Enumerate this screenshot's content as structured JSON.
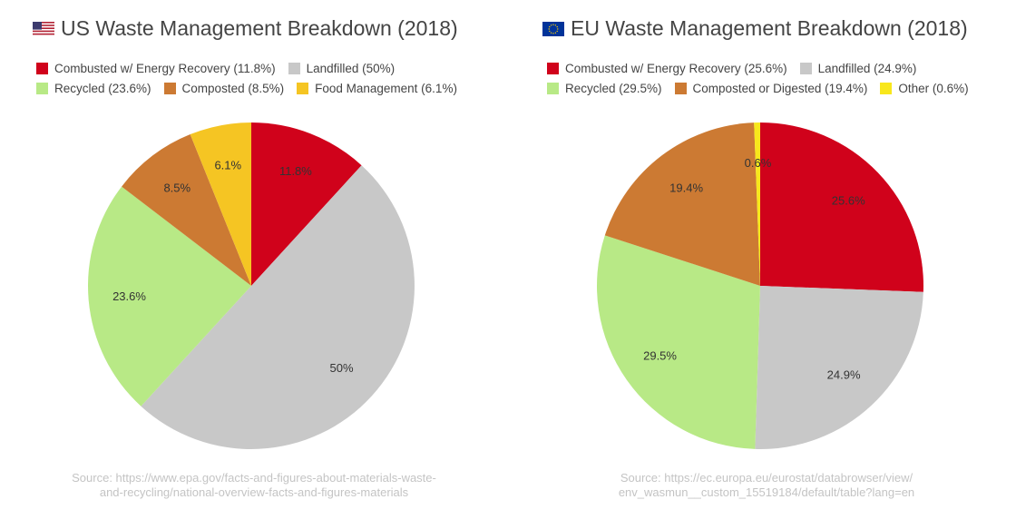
{
  "chart_data": [
    {
      "type": "pie",
      "title": "US Waste Management Breakdown (2018)",
      "flag_icon": "us-flag-icon",
      "legend": [
        [
          "Combusted w/ Energy Recovery (11.8%)",
          "Landfilled (50%)"
        ],
        [
          "Recycled (23.6%)",
          "Composted (8.5%)",
          "Food Management (6.1%)"
        ]
      ],
      "slices": [
        {
          "name": "Combusted w/ Energy Recovery",
          "value": 11.8,
          "label": "11.8%",
          "color": "#d0021b"
        },
        {
          "name": "Landfilled",
          "value": 50,
          "label": "50%",
          "color": "#c8c8c8"
        },
        {
          "name": "Recycled",
          "value": 23.6,
          "label": "23.6%",
          "color": "#b8e986"
        },
        {
          "name": "Composted",
          "value": 8.5,
          "label": "8.5%",
          "color": "#cc7a33"
        },
        {
          "name": "Food Management",
          "value": 6.1,
          "label": "6.1%",
          "color": "#f5c523"
        }
      ],
      "source_lines": [
        "Source: https://www.epa.gov/facts-and-figures-about-materials-waste-",
        "and-recycling/national-overview-facts-and-figures-materials"
      ]
    },
    {
      "type": "pie",
      "title": "EU Waste Management Breakdown (2018)",
      "flag_icon": "eu-flag-icon",
      "legend": [
        [
          "Combusted w/ Energy Recovery (25.6%)",
          "Landfilled (24.9%)"
        ],
        [
          "Recycled (29.5%)",
          "Composted or Digested (19.4%)",
          "Other (0.6%)"
        ]
      ],
      "slices": [
        {
          "name": "Combusted w/ Energy Recovery",
          "value": 25.6,
          "label": "25.6%",
          "color": "#d0021b"
        },
        {
          "name": "Landfilled",
          "value": 24.9,
          "label": "24.9%",
          "color": "#c8c8c8"
        },
        {
          "name": "Recycled",
          "value": 29.5,
          "label": "29.5%",
          "color": "#b8e986"
        },
        {
          "name": "Composted or Digested",
          "value": 19.4,
          "label": "19.4%",
          "color": "#cc7a33"
        },
        {
          "name": "Other",
          "value": 0.6,
          "label": "0.6%",
          "color": "#f8e71c"
        }
      ],
      "source_lines": [
        "Source: https://ec.europa.eu/eurostat/databrowser/view/",
        "env_wasmun__custom_15519184/default/table?lang=en"
      ]
    }
  ]
}
